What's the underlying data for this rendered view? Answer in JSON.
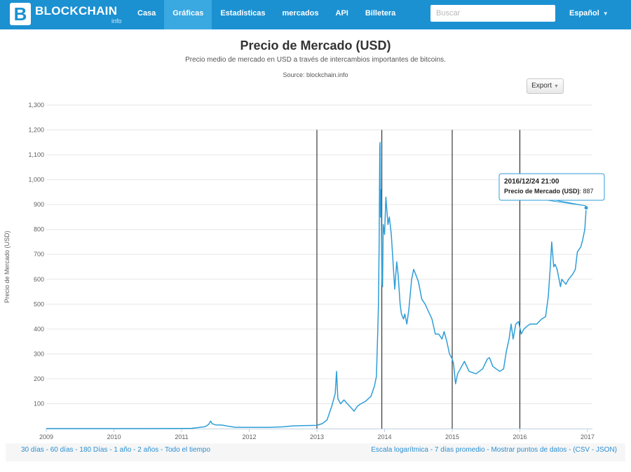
{
  "nav": {
    "logo_text": "BLOCKCHAIN",
    "logo_sub": "info",
    "items": [
      "Casa",
      "Gráficas",
      "Estadísticas",
      "mercados",
      "API",
      "Billetera"
    ],
    "active_index": 1,
    "search_placeholder": "Buscar",
    "language": "Español"
  },
  "colors": {
    "brand": "#1b91d2",
    "series": "#2e9ed8",
    "link": "#2a8fd1"
  },
  "export_label": "Export",
  "chart_data": {
    "type": "line",
    "title": "Precio de Mercado (USD)",
    "subtitle": "Precio medio de mercado en USD a través de intercambios importantes de bitcoins.",
    "source": "Source: blockchain.info",
    "ylabel": "Precio de Mercado (USD)",
    "xlabel": "",
    "ylim": [
      0,
      1300
    ],
    "yticks": [
      100,
      200,
      300,
      400,
      500,
      600,
      700,
      800,
      900,
      1000,
      1100,
      1200,
      1300
    ],
    "xlim": [
      2009.0,
      2017.0
    ],
    "xticks": [
      "2009",
      "2010",
      "2011",
      "2012",
      "2013",
      "2014",
      "2015",
      "2016",
      "2017"
    ],
    "grid": true,
    "vertical_markers": [
      2013.0,
      2013.96,
      2015.0,
      2016.0
    ],
    "tooltip": {
      "date": "2016/12/24 21:00",
      "label": "Precio de Mercado (USD)",
      "value": "887",
      "x": 2016.98,
      "y": 887
    },
    "series": [
      {
        "color": "#2e9ed8",
        "points": [
          [
            2009.0,
            0
          ],
          [
            2010.5,
            0
          ],
          [
            2010.9,
            0.3
          ],
          [
            2011.15,
            1
          ],
          [
            2011.35,
            8
          ],
          [
            2011.4,
            17
          ],
          [
            2011.43,
            30
          ],
          [
            2011.45,
            20
          ],
          [
            2011.5,
            15
          ],
          [
            2011.6,
            14
          ],
          [
            2011.7,
            9
          ],
          [
            2011.8,
            5
          ],
          [
            2012.0,
            5
          ],
          [
            2012.3,
            5
          ],
          [
            2012.5,
            7
          ],
          [
            2012.65,
            11
          ],
          [
            2012.8,
            12
          ],
          [
            2013.0,
            13
          ],
          [
            2013.08,
            20
          ],
          [
            2013.15,
            35
          ],
          [
            2013.22,
            90
          ],
          [
            2013.27,
            140
          ],
          [
            2013.29,
            230
          ],
          [
            2013.31,
            120
          ],
          [
            2013.35,
            100
          ],
          [
            2013.4,
            115
          ],
          [
            2013.45,
            100
          ],
          [
            2013.5,
            85
          ],
          [
            2013.55,
            70
          ],
          [
            2013.6,
            90
          ],
          [
            2013.65,
            100
          ],
          [
            2013.72,
            110
          ],
          [
            2013.8,
            130
          ],
          [
            2013.85,
            170
          ],
          [
            2013.88,
            210
          ],
          [
            2013.9,
            400
          ],
          [
            2013.91,
            500
          ],
          [
            2013.92,
            750
          ],
          [
            2013.93,
            1130
          ],
          [
            2013.935,
            1150
          ],
          [
            2013.94,
            850
          ],
          [
            2013.95,
            960
          ],
          [
            2013.96,
            620
          ],
          [
            2013.97,
            570
          ],
          [
            2013.98,
            820
          ],
          [
            2014.0,
            780
          ],
          [
            2014.02,
            930
          ],
          [
            2014.05,
            820
          ],
          [
            2014.07,
            850
          ],
          [
            2014.1,
            780
          ],
          [
            2014.13,
            650
          ],
          [
            2014.15,
            560
          ],
          [
            2014.18,
            670
          ],
          [
            2014.2,
            620
          ],
          [
            2014.23,
            500
          ],
          [
            2014.25,
            460
          ],
          [
            2014.28,
            440
          ],
          [
            2014.3,
            460
          ],
          [
            2014.33,
            420
          ],
          [
            2014.36,
            480
          ],
          [
            2014.4,
            600
          ],
          [
            2014.43,
            640
          ],
          [
            2014.46,
            620
          ],
          [
            2014.5,
            590
          ],
          [
            2014.55,
            520
          ],
          [
            2014.6,
            500
          ],
          [
            2014.65,
            470
          ],
          [
            2014.7,
            440
          ],
          [
            2014.75,
            380
          ],
          [
            2014.8,
            380
          ],
          [
            2014.85,
            360
          ],
          [
            2014.88,
            390
          ],
          [
            2014.92,
            350
          ],
          [
            2014.96,
            300
          ],
          [
            2015.0,
            280
          ],
          [
            2015.02,
            260
          ],
          [
            2015.05,
            180
          ],
          [
            2015.08,
            220
          ],
          [
            2015.12,
            240
          ],
          [
            2015.18,
            270
          ],
          [
            2015.25,
            230
          ],
          [
            2015.35,
            220
          ],
          [
            2015.45,
            240
          ],
          [
            2015.52,
            280
          ],
          [
            2015.55,
            285
          ],
          [
            2015.6,
            250
          ],
          [
            2015.7,
            230
          ],
          [
            2015.76,
            240
          ],
          [
            2015.8,
            310
          ],
          [
            2015.84,
            360
          ],
          [
            2015.87,
            420
          ],
          [
            2015.9,
            360
          ],
          [
            2015.94,
            420
          ],
          [
            2015.98,
            430
          ],
          [
            2016.02,
            380
          ],
          [
            2016.06,
            400
          ],
          [
            2016.1,
            410
          ],
          [
            2016.15,
            420
          ],
          [
            2016.25,
            420
          ],
          [
            2016.32,
            440
          ],
          [
            2016.38,
            450
          ],
          [
            2016.42,
            530
          ],
          [
            2016.45,
            650
          ],
          [
            2016.47,
            750
          ],
          [
            2016.5,
            650
          ],
          [
            2016.52,
            660
          ],
          [
            2016.55,
            640
          ],
          [
            2016.6,
            570
          ],
          [
            2016.62,
            600
          ],
          [
            2016.68,
            580
          ],
          [
            2016.72,
            600
          ],
          [
            2016.78,
            620
          ],
          [
            2016.82,
            640
          ],
          [
            2016.85,
            710
          ],
          [
            2016.9,
            730
          ],
          [
            2016.93,
            760
          ],
          [
            2016.96,
            800
          ],
          [
            2016.98,
            887
          ]
        ]
      }
    ]
  },
  "footer": {
    "ranges": [
      "30 días",
      "60 días",
      "180 Días",
      "1 año",
      "2 años",
      "Todo el tiempo"
    ],
    "options": [
      "Escala logarítmica",
      "7 días promedio",
      "Mostrar puntos de datos"
    ],
    "csv": "CSV",
    "json": "JSON"
  }
}
